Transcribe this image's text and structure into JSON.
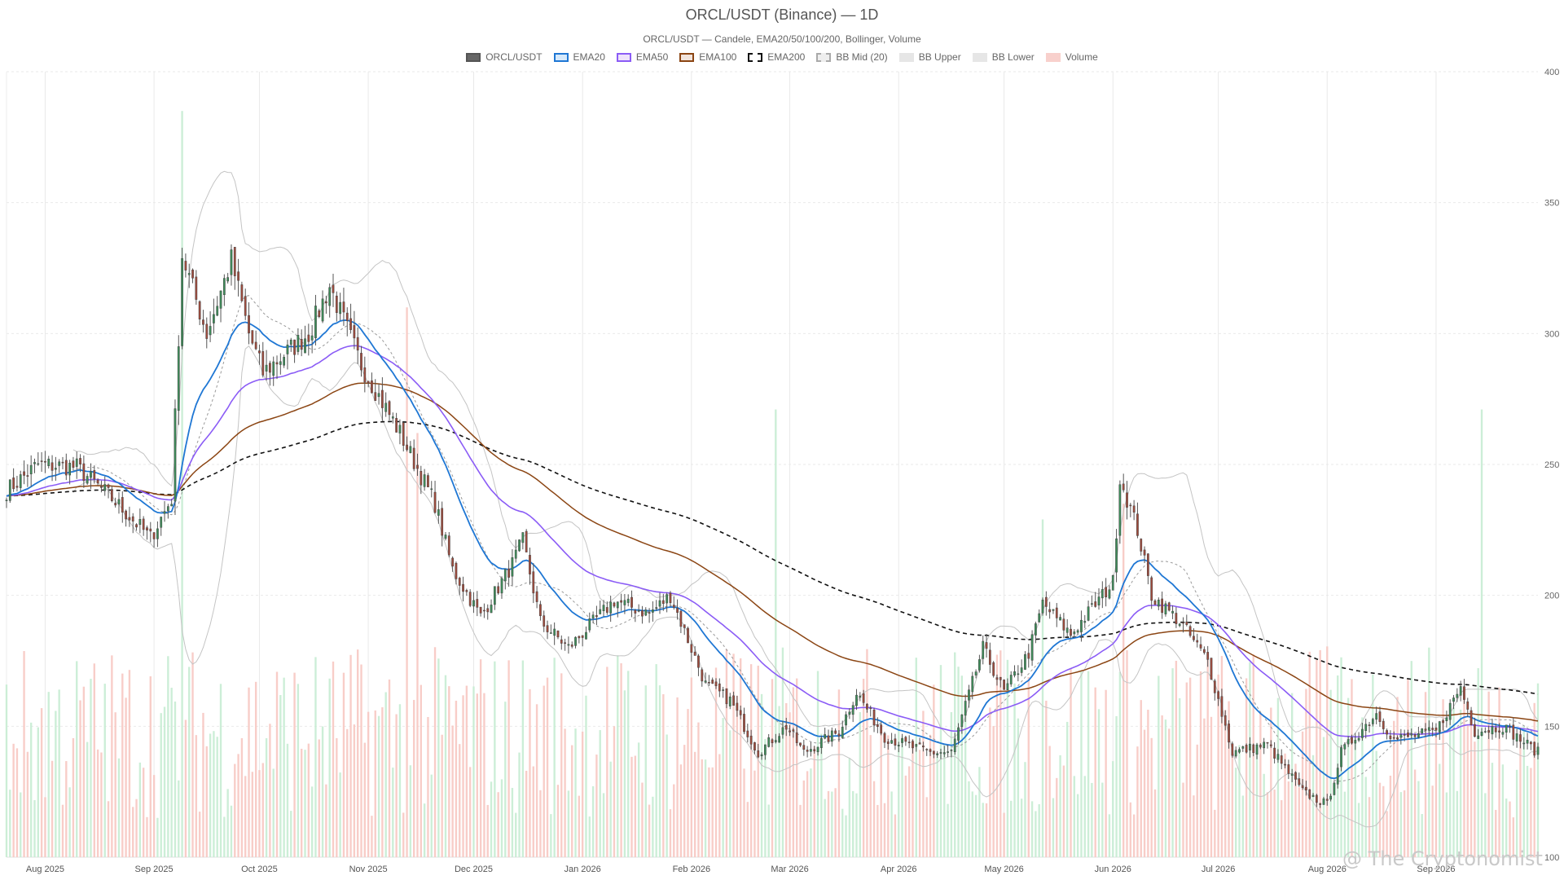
{
  "chart_data": {
    "type": "candlestick",
    "title": "ORCL/USDT (Binance) — 1D",
    "subtitle": "ORCL/USDT — Candele, EMA20/50/100/200, Bollinger, Volume",
    "y_axis": {
      "range": [
        100,
        400
      ],
      "ticks": [
        100,
        150,
        200,
        250,
        300,
        350,
        400
      ],
      "position": "right",
      "grid": true
    },
    "x_axis": {
      "range": [
        "2025-07-21",
        "2026-09-30"
      ],
      "ticks": [
        {
          "date": "2025-08-01",
          "label": "Aug 2025"
        },
        {
          "date": "2025-09-01",
          "label": "Sep 2025"
        },
        {
          "date": "2025-10-01",
          "label": "Oct 2025"
        },
        {
          "date": "2025-11-01",
          "label": "Nov 2025"
        },
        {
          "date": "2025-12-01",
          "label": "Dec 2025"
        },
        {
          "date": "2026-01-01",
          "label": "Jan 2026"
        },
        {
          "date": "2026-02-01",
          "label": "Feb 2026"
        },
        {
          "date": "2026-03-01",
          "label": "Mar 2026"
        },
        {
          "date": "2026-04-01",
          "label": "Apr 2026"
        },
        {
          "date": "2026-05-01",
          "label": "May 2026"
        },
        {
          "date": "2026-06-01",
          "label": "Jun 2026"
        },
        {
          "date": "2026-07-01",
          "label": "Jul 2026"
        },
        {
          "date": "2026-08-01",
          "label": "Aug 2026"
        },
        {
          "date": "2026-09-01",
          "label": "Sep 2026"
        }
      ],
      "grid": true
    },
    "legend": [
      {
        "name": "ORCL/USDT",
        "fill": "#666666",
        "border": "#555555",
        "dashed": false
      },
      {
        "name": "EMA20",
        "fill": "#d6e9fb",
        "border": "#1f77d4",
        "dashed": false
      },
      {
        "name": "EMA50",
        "fill": "#eee2fb",
        "border": "#8b5cf6",
        "dashed": false
      },
      {
        "name": "EMA100",
        "fill": "#f1e4dc",
        "border": "#8b4513",
        "dashed": false
      },
      {
        "name": "EMA200",
        "fill": "#ffffff",
        "border": "#111111",
        "dashed": true
      },
      {
        "name": "BB Mid (20)",
        "fill": "#eeeeee",
        "border": "#aaaaaa",
        "dashed": true
      },
      {
        "name": "BB Upper",
        "fill": "#e6e6e6",
        "border": "#e6e6e6",
        "dashed": false
      },
      {
        "name": "BB Lower",
        "fill": "#e6e6e6",
        "border": "#e6e6e6",
        "dashed": false
      },
      {
        "name": "Volume",
        "fill": "#f8d0cc",
        "border": "#f8d0cc",
        "dashed": false
      }
    ],
    "colors": {
      "up": "#3e8e5a",
      "down": "#a04b3d",
      "vol_up": "#c6ecd3",
      "vol_down": "#f7c8c2",
      "ema20": "#1f77d4",
      "ema50": "#8b5cf6",
      "ema100": "#8b4513",
      "ema200": "#111111",
      "bb_mid": "#999999",
      "bb_band": "#c4c4c4"
    },
    "key_closes": [
      {
        "date": "2025-07-21",
        "close": 240
      },
      {
        "date": "2025-07-30",
        "close": 250
      },
      {
        "date": "2025-08-10",
        "close": 249
      },
      {
        "date": "2025-08-20",
        "close": 237
      },
      {
        "date": "2025-08-31",
        "close": 222
      },
      {
        "date": "2025-09-06",
        "close": 237
      },
      {
        "date": "2025-09-09",
        "close": 330
      },
      {
        "date": "2025-09-16",
        "close": 300
      },
      {
        "date": "2025-09-23",
        "close": 328
      },
      {
        "date": "2025-09-28",
        "close": 300
      },
      {
        "date": "2025-10-02",
        "close": 285
      },
      {
        "date": "2025-10-15",
        "close": 300
      },
      {
        "date": "2025-10-21",
        "close": 318
      },
      {
        "date": "2025-10-30",
        "close": 288
      },
      {
        "date": "2025-11-10",
        "close": 262
      },
      {
        "date": "2025-11-20",
        "close": 235
      },
      {
        "date": "2025-11-25",
        "close": 210
      },
      {
        "date": "2025-12-03",
        "close": 192
      },
      {
        "date": "2025-12-12",
        "close": 212
      },
      {
        "date": "2025-12-15",
        "close": 221
      },
      {
        "date": "2025-12-20",
        "close": 190
      },
      {
        "date": "2025-12-28",
        "close": 180
      },
      {
        "date": "2026-01-10",
        "close": 198
      },
      {
        "date": "2026-01-20",
        "close": 193
      },
      {
        "date": "2026-01-26",
        "close": 200
      },
      {
        "date": "2026-02-05",
        "close": 166
      },
      {
        "date": "2026-02-12",
        "close": 160
      },
      {
        "date": "2026-02-20",
        "close": 140
      },
      {
        "date": "2026-02-28",
        "close": 150
      },
      {
        "date": "2026-03-05",
        "close": 140
      },
      {
        "date": "2026-03-15",
        "close": 148
      },
      {
        "date": "2026-03-20",
        "close": 163
      },
      {
        "date": "2026-03-28",
        "close": 146
      },
      {
        "date": "2026-04-05",
        "close": 142
      },
      {
        "date": "2026-04-10",
        "close": 140
      },
      {
        "date": "2026-04-16",
        "close": 140
      },
      {
        "date": "2026-04-25",
        "close": 180
      },
      {
        "date": "2026-05-01",
        "close": 163
      },
      {
        "date": "2026-05-08",
        "close": 178
      },
      {
        "date": "2026-05-12",
        "close": 197
      },
      {
        "date": "2026-05-20",
        "close": 185
      },
      {
        "date": "2026-06-01",
        "close": 205
      },
      {
        "date": "2026-06-03",
        "close": 245
      },
      {
        "date": "2026-06-08",
        "close": 225
      },
      {
        "date": "2026-06-12",
        "close": 200
      },
      {
        "date": "2026-06-20",
        "close": 190
      },
      {
        "date": "2026-06-28",
        "close": 175
      },
      {
        "date": "2026-07-05",
        "close": 140
      },
      {
        "date": "2026-07-15",
        "close": 143
      },
      {
        "date": "2026-07-25",
        "close": 125
      },
      {
        "date": "2026-08-01",
        "close": 120
      },
      {
        "date": "2026-08-05",
        "close": 140
      },
      {
        "date": "2026-08-15",
        "close": 155
      },
      {
        "date": "2026-08-20",
        "close": 145
      },
      {
        "date": "2026-09-01",
        "close": 148
      },
      {
        "date": "2026-09-08",
        "close": 165
      },
      {
        "date": "2026-09-12",
        "close": 148
      },
      {
        "date": "2026-09-20",
        "close": 150
      },
      {
        "date": "2026-09-30",
        "close": 140
      }
    ],
    "volume_spikes": [
      {
        "date": "2025-09-09",
        "volume_pct": 95
      },
      {
        "date": "2025-11-12",
        "volume_pct": 70
      },
      {
        "date": "2025-11-15",
        "volume_pct": 54
      },
      {
        "date": "2026-02-25",
        "volume_pct": 57
      },
      {
        "date": "2026-05-12",
        "volume_pct": 43
      },
      {
        "date": "2026-06-04",
        "volume_pct": 45
      },
      {
        "date": "2026-09-14",
        "volume_pct": 57
      }
    ]
  },
  "watermark": "@ The Cryptonomist"
}
